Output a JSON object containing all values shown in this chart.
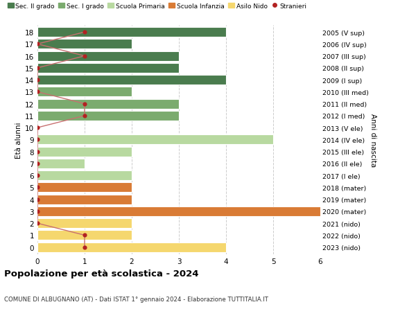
{
  "ages": [
    18,
    17,
    16,
    15,
    14,
    13,
    12,
    11,
    10,
    9,
    8,
    7,
    6,
    5,
    4,
    3,
    2,
    1,
    0
  ],
  "right_labels": [
    "2005 (V sup)",
    "2006 (IV sup)",
    "2007 (III sup)",
    "2008 (II sup)",
    "2009 (I sup)",
    "2010 (III med)",
    "2011 (II med)",
    "2012 (I med)",
    "2013 (V ele)",
    "2014 (IV ele)",
    "2015 (III ele)",
    "2016 (II ele)",
    "2017 (I ele)",
    "2018 (mater)",
    "2019 (mater)",
    "2020 (mater)",
    "2021 (nido)",
    "2022 (nido)",
    "2023 (nido)"
  ],
  "bar_values": [
    4,
    2,
    3,
    3,
    4,
    2,
    3,
    3,
    0,
    5,
    2,
    1,
    2,
    2,
    2,
    6,
    2,
    2,
    4
  ],
  "bar_colors": [
    "#4a7c4e",
    "#4a7c4e",
    "#4a7c4e",
    "#4a7c4e",
    "#4a7c4e",
    "#7bab6e",
    "#7bab6e",
    "#7bab6e",
    "#b8d9a0",
    "#b8d9a0",
    "#b8d9a0",
    "#b8d9a0",
    "#b8d9a0",
    "#d97b35",
    "#d97b35",
    "#d97b35",
    "#f5d76e",
    "#f5d76e",
    "#f5d76e"
  ],
  "stranieri_values": [
    1,
    0,
    1,
    0,
    0,
    0,
    1,
    1,
    0,
    0,
    0,
    0,
    0,
    0,
    0,
    0,
    0,
    1,
    1
  ],
  "stranieri_color": "#b22222",
  "stranieri_line_color": "#c87070",
  "title": "Popolazione per età scolastica - 2024",
  "subtitle": "COMUNE DI ALBUGNANO (AT) - Dati ISTAT 1° gennaio 2024 - Elaborazione TUTTITALIA.IT",
  "ylabel": "Età alunni",
  "right_ylabel": "Anni di nascita",
  "xlim": [
    0,
    6
  ],
  "xticks": [
    0,
    1,
    2,
    3,
    4,
    5,
    6
  ],
  "legend_labels": [
    "Sec. II grado",
    "Sec. I grado",
    "Scuola Primaria",
    "Scuola Infanzia",
    "Asilo Nido",
    "Stranieri"
  ],
  "legend_colors": [
    "#4a7c4e",
    "#7bab6e",
    "#b8d9a0",
    "#d97b35",
    "#f5d76e",
    "#b22222"
  ],
  "background_color": "#ffffff",
  "grid_color": "#cccccc"
}
